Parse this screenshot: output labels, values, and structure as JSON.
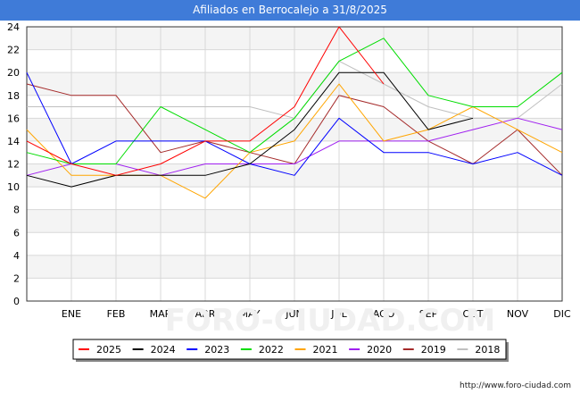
{
  "chart_data": {
    "type": "line",
    "title": "Afiliados en Berrocalejo a 31/8/2025",
    "categories": [
      "",
      "ENE",
      "FEB",
      "MAR",
      "ABR",
      "MAY",
      "JUN",
      "JUL",
      "AGO",
      "SEP",
      "OCT",
      "NOV",
      "DIC"
    ],
    "ylim": [
      0,
      24
    ],
    "yticks": [
      0,
      2,
      4,
      6,
      8,
      10,
      12,
      14,
      16,
      18,
      20,
      22,
      24
    ],
    "grid": true,
    "legend_position": "bottom",
    "watermark": "FORO-CIUDAD.COM",
    "series": [
      {
        "name": "2025",
        "color": "#ff0000",
        "values": [
          14,
          12,
          11,
          12,
          14,
          14,
          17,
          24,
          19,
          null,
          null,
          null,
          null
        ]
      },
      {
        "name": "2024",
        "color": "#000000",
        "values": [
          11,
          10,
          11,
          11,
          11,
          12,
          15,
          20,
          20,
          15,
          16,
          null,
          null
        ]
      },
      {
        "name": "2023",
        "color": "#0000ff",
        "values": [
          20,
          12,
          14,
          14,
          14,
          12,
          11,
          16,
          13,
          13,
          12,
          13,
          11
        ]
      },
      {
        "name": "2022",
        "color": "#00dd00",
        "values": [
          13,
          12,
          12,
          17,
          15,
          13,
          16,
          21,
          23,
          18,
          17,
          17,
          20
        ]
      },
      {
        "name": "2021",
        "color": "#ffa500",
        "values": [
          15,
          11,
          11,
          11,
          9,
          13,
          14,
          19,
          14,
          15,
          17,
          15,
          13
        ]
      },
      {
        "name": "2020",
        "color": "#a020f0",
        "values": [
          11,
          12,
          12,
          11,
          12,
          12,
          12,
          14,
          14,
          14,
          15,
          16,
          15
        ]
      },
      {
        "name": "2019",
        "color": "#a52a2a",
        "values": [
          19,
          18,
          18,
          13,
          14,
          13,
          12,
          18,
          17,
          14,
          12,
          15,
          11
        ]
      },
      {
        "name": "2018",
        "color": "#c0c0c0",
        "values": [
          17,
          17,
          17,
          17,
          17,
          17,
          16,
          21,
          19,
          17,
          16,
          16,
          19
        ]
      }
    ]
  },
  "footer": {
    "url": "http://www.foro-ciudad.com"
  }
}
